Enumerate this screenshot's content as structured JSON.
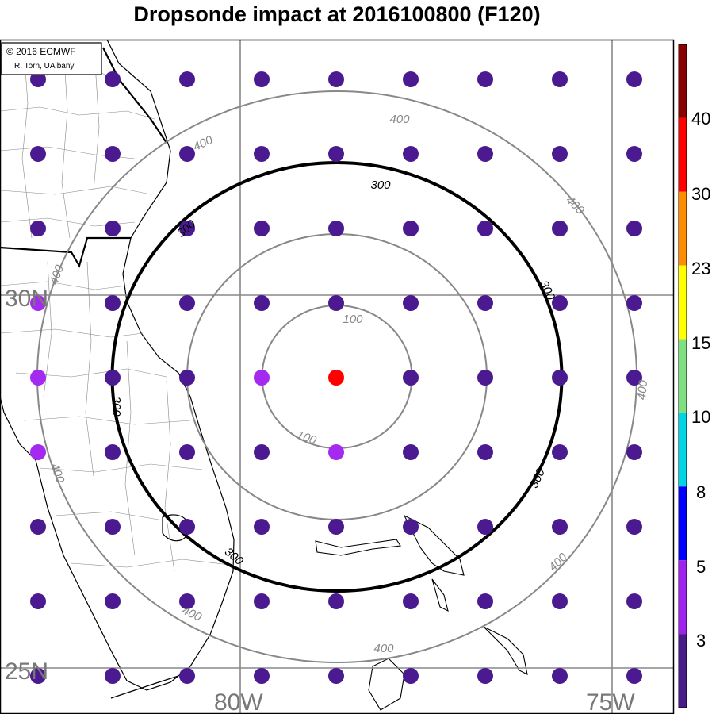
{
  "title": "Dropsonde impact at 2016100800 (F120)",
  "credit": {
    "line1": "© 2016 ECMWF",
    "line2": "R. Torn, UAlbany"
  },
  "lat_labels": [
    "30N",
    "25N"
  ],
  "lon_labels": [
    "80W",
    "75W"
  ],
  "contours": [
    {
      "value": 100,
      "label": "100",
      "emphasis": false
    },
    {
      "value": 200,
      "label": "",
      "emphasis": false
    },
    {
      "value": 300,
      "label": "300",
      "emphasis": true
    },
    {
      "value": 400,
      "label": "400",
      "emphasis": false
    }
  ],
  "colorbar": {
    "labels": [
      "40",
      "30",
      "23",
      "15",
      "10",
      "8",
      "5",
      "3"
    ],
    "colors": [
      "#8b0000",
      "#ff0000",
      "#ff8c00",
      "#ffff00",
      "#7fe07f",
      "#00d5e8",
      "#0000ff",
      "#a020f0",
      "#4a1a8a"
    ]
  },
  "dots": {
    "colors": {
      "default": "#4b1a90",
      "light": "#a52af0",
      "hot": "#ff0000"
    },
    "special": [
      {
        "row": 4,
        "col": 4,
        "color": "hot"
      },
      {
        "row": 4,
        "col": 3,
        "color": "light"
      },
      {
        "row": 5,
        "col": 4,
        "color": "light"
      },
      {
        "row": 3,
        "col": 0,
        "color": "light"
      },
      {
        "row": 4,
        "col": 0,
        "color": "light"
      },
      {
        "row": 5,
        "col": 0,
        "color": "light"
      }
    ]
  }
}
